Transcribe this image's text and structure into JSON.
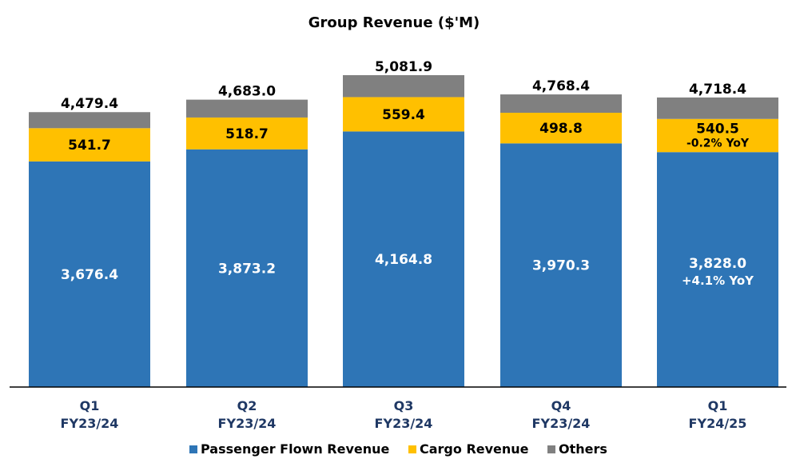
{
  "chart_data": {
    "type": "bar",
    "stacked": true,
    "title": "Group Revenue ($'M)",
    "categories": [
      [
        "Q1",
        "FY23/24"
      ],
      [
        "Q2",
        "FY23/24"
      ],
      [
        "Q3",
        "FY23/24"
      ],
      [
        "Q4",
        "FY23/24"
      ],
      [
        "Q1",
        "FY24/25"
      ]
    ],
    "series": [
      {
        "name": "Passenger Flown Revenue",
        "color": "#2E75B6",
        "values": [
          3676.4,
          3873.2,
          4164.8,
          3970.3,
          3828.0
        ],
        "labels": [
          "3,676.4",
          "3,873.2",
          "4,164.8",
          "3,970.3",
          "3,828.0"
        ]
      },
      {
        "name": "Cargo Revenue",
        "color": "#FFC000",
        "values": [
          541.7,
          518.7,
          559.4,
          498.8,
          540.5
        ],
        "labels": [
          "541.7",
          "518.7",
          "559.4",
          "498.8",
          "540.5"
        ]
      },
      {
        "name": "Others",
        "color": "#808080",
        "values": [
          261.3,
          291.1,
          357.7,
          299.3,
          349.9
        ],
        "labels": []
      }
    ],
    "totals": [
      4479.4,
      4683.0,
      5081.9,
      4768.4,
      4718.4
    ],
    "total_labels": [
      "4,479.4",
      "4,683.0",
      "5,081.9",
      "4,768.4",
      "4,718.4"
    ],
    "annotations": [
      {
        "bar_index": 4,
        "series": "Passenger Flown Revenue",
        "text": "+4.1% YoY"
      },
      {
        "bar_index": 4,
        "series": "Cargo Revenue",
        "text": "-0.2% YoY"
      }
    ],
    "legend_position": "bottom",
    "grid": false,
    "ylim": [
      0,
      5081.9
    ]
  }
}
